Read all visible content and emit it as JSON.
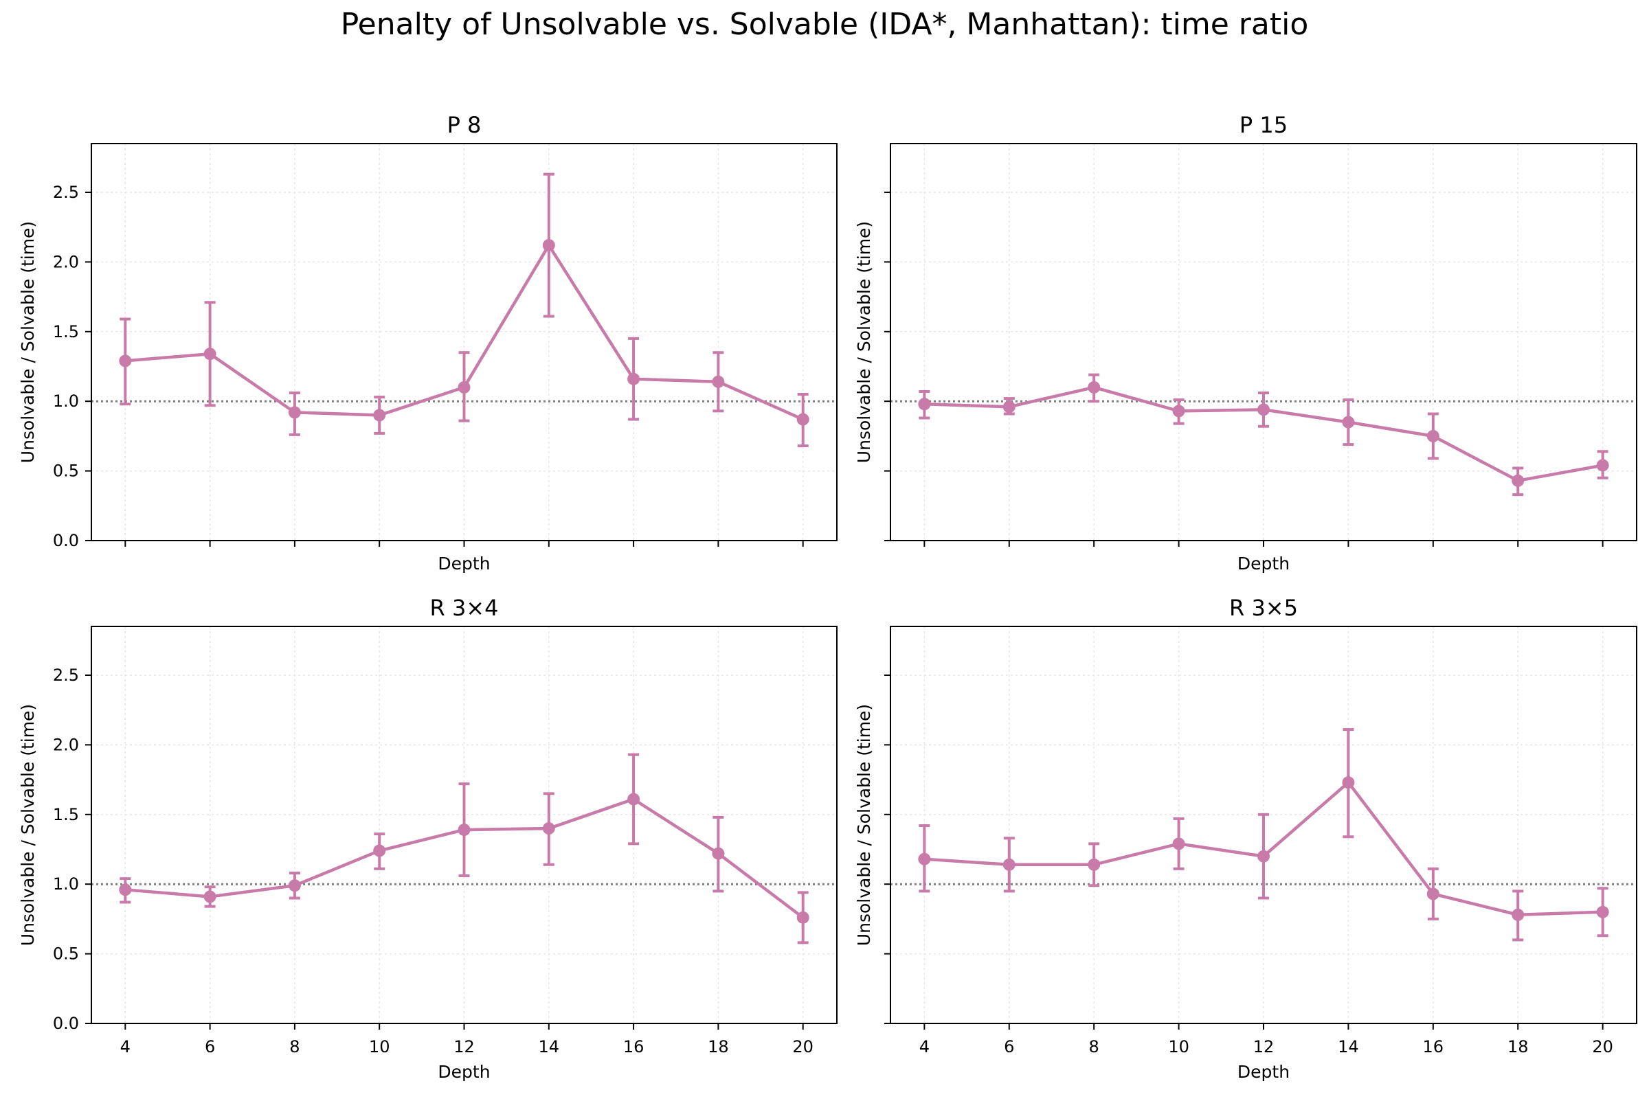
{
  "figure": {
    "title": "Penalty of Unsolvable vs. Solvable (IDA*, Manhattan): time ratio"
  },
  "style": {
    "series_color": "#c87aa8",
    "reference_line_color": "#7f7f7f",
    "grid_color": "#e6e6e6"
  },
  "chart_data": [
    {
      "type": "line",
      "title": "P 8",
      "xlabel": "Depth",
      "ylabel": "Unsolvable / Solvable (time)",
      "x": [
        4,
        6,
        8,
        10,
        12,
        14,
        16,
        18,
        20
      ],
      "y": [
        1.29,
        1.34,
        0.92,
        0.9,
        1.1,
        2.12,
        1.16,
        1.14,
        0.87
      ],
      "err_low": [
        0.98,
        0.97,
        0.76,
        0.77,
        0.86,
        1.61,
        0.87,
        0.93,
        0.68
      ],
      "err_high": [
        1.59,
        1.71,
        1.06,
        1.03,
        1.35,
        2.63,
        1.45,
        1.35,
        1.05
      ],
      "reference_y": 1.0,
      "xlim": [
        3.2,
        20.8
      ],
      "ylim": [
        0,
        2.85
      ],
      "xticks": [
        4,
        6,
        8,
        10,
        12,
        14,
        16,
        18,
        20
      ],
      "yticks": [
        0.0,
        0.5,
        1.0,
        1.5,
        2.0,
        2.5
      ],
      "ytick_labels": [
        "0.0",
        "0.5",
        "1.0",
        "1.5",
        "2.0",
        "2.5"
      ],
      "show_xtick_labels": false,
      "show_ytick_labels": true,
      "grid": true
    },
    {
      "type": "line",
      "title": "P 15",
      "xlabel": "Depth",
      "ylabel": "Unsolvable / Solvable (time)",
      "x": [
        4,
        6,
        8,
        10,
        12,
        14,
        16,
        18,
        20
      ],
      "y": [
        0.98,
        0.96,
        1.1,
        0.93,
        0.94,
        0.85,
        0.75,
        0.43,
        0.54
      ],
      "err_low": [
        0.88,
        0.91,
        1.0,
        0.84,
        0.82,
        0.69,
        0.59,
        0.33,
        0.45
      ],
      "err_high": [
        1.07,
        1.02,
        1.19,
        1.01,
        1.06,
        1.01,
        0.91,
        0.52,
        0.64
      ],
      "reference_y": 1.0,
      "xlim": [
        3.2,
        20.8
      ],
      "ylim": [
        0,
        2.85
      ],
      "xticks": [
        4,
        6,
        8,
        10,
        12,
        14,
        16,
        18,
        20
      ],
      "yticks": [
        0.0,
        0.5,
        1.0,
        1.5,
        2.0,
        2.5
      ],
      "ytick_labels": [
        "0.0",
        "0.5",
        "1.0",
        "1.5",
        "2.0",
        "2.5"
      ],
      "show_xtick_labels": false,
      "show_ytick_labels": false,
      "grid": true
    },
    {
      "type": "line",
      "title": "R 3×4",
      "xlabel": "Depth",
      "ylabel": "Unsolvable / Solvable (time)",
      "x": [
        4,
        6,
        8,
        10,
        12,
        14,
        16,
        18,
        20
      ],
      "y": [
        0.96,
        0.91,
        0.99,
        1.24,
        1.39,
        1.4,
        1.61,
        1.22,
        0.76
      ],
      "err_low": [
        0.87,
        0.84,
        0.9,
        1.11,
        1.06,
        1.14,
        1.29,
        0.95,
        0.58
      ],
      "err_high": [
        1.04,
        0.98,
        1.08,
        1.36,
        1.72,
        1.65,
        1.93,
        1.48,
        0.94
      ],
      "reference_y": 1.0,
      "xlim": [
        3.2,
        20.8
      ],
      "ylim": [
        0,
        2.85
      ],
      "xticks": [
        4,
        6,
        8,
        10,
        12,
        14,
        16,
        18,
        20
      ],
      "yticks": [
        0.0,
        0.5,
        1.0,
        1.5,
        2.0,
        2.5
      ],
      "ytick_labels": [
        "0.0",
        "0.5",
        "1.0",
        "1.5",
        "2.0",
        "2.5"
      ],
      "show_xtick_labels": true,
      "show_ytick_labels": true,
      "grid": true
    },
    {
      "type": "line",
      "title": "R 3×5",
      "xlabel": "Depth",
      "ylabel": "Unsolvable / Solvable (time)",
      "x": [
        4,
        6,
        8,
        10,
        12,
        14,
        16,
        18,
        20
      ],
      "y": [
        1.18,
        1.14,
        1.14,
        1.29,
        1.2,
        1.73,
        0.93,
        0.78,
        0.8
      ],
      "err_low": [
        0.95,
        0.95,
        0.99,
        1.11,
        0.9,
        1.34,
        0.75,
        0.6,
        0.63
      ],
      "err_high": [
        1.42,
        1.33,
        1.29,
        1.47,
        1.5,
        2.11,
        1.11,
        0.95,
        0.97
      ],
      "reference_y": 1.0,
      "xlim": [
        3.2,
        20.8
      ],
      "ylim": [
        0,
        2.85
      ],
      "xticks": [
        4,
        6,
        8,
        10,
        12,
        14,
        16,
        18,
        20
      ],
      "yticks": [
        0.0,
        0.5,
        1.0,
        1.5,
        2.0,
        2.5
      ],
      "ytick_labels": [
        "0.0",
        "0.5",
        "1.0",
        "1.5",
        "2.0",
        "2.5"
      ],
      "show_xtick_labels": true,
      "show_ytick_labels": false,
      "grid": true
    }
  ]
}
